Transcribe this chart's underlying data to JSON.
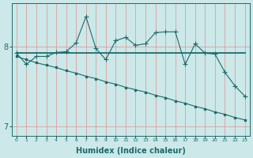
{
  "xlabel": "Humidex (Indice chaleur)",
  "background_color": "#cce8e8",
  "line_color": "#1a6b6b",
  "grid_color_v": "#e09090",
  "grid_color_h": "#e09090",
  "x": [
    0,
    1,
    2,
    3,
    4,
    5,
    6,
    7,
    8,
    9,
    10,
    11,
    12,
    13,
    14,
    15,
    16,
    17,
    18,
    19,
    20,
    21,
    22,
    23
  ],
  "y_zigzag": [
    7.92,
    7.78,
    7.88,
    7.88,
    7.93,
    7.94,
    8.05,
    8.38,
    7.98,
    7.84,
    8.08,
    8.12,
    8.02,
    8.04,
    8.18,
    8.19,
    8.19,
    7.78,
    8.04,
    7.92,
    7.91,
    7.68,
    7.51,
    7.38
  ],
  "y_flat": [
    7.92,
    7.92,
    7.92,
    7.92,
    7.92,
    7.92,
    7.92,
    7.92,
    7.92,
    7.92,
    7.92,
    7.92,
    7.92,
    7.92,
    7.92,
    7.92,
    7.92,
    7.92,
    7.92,
    7.92,
    7.92,
    7.92,
    7.92,
    7.92
  ],
  "y_decline": [
    7.88,
    7.84,
    7.8,
    7.77,
    7.74,
    7.7,
    7.67,
    7.63,
    7.6,
    7.56,
    7.53,
    7.49,
    7.46,
    7.43,
    7.39,
    7.36,
    7.32,
    7.29,
    7.25,
    7.22,
    7.18,
    7.15,
    7.11,
    7.08
  ],
  "ylim": [
    6.88,
    8.55
  ],
  "yticks": [
    7.0,
    8.0
  ],
  "xlim": [
    -0.5,
    23.5
  ]
}
